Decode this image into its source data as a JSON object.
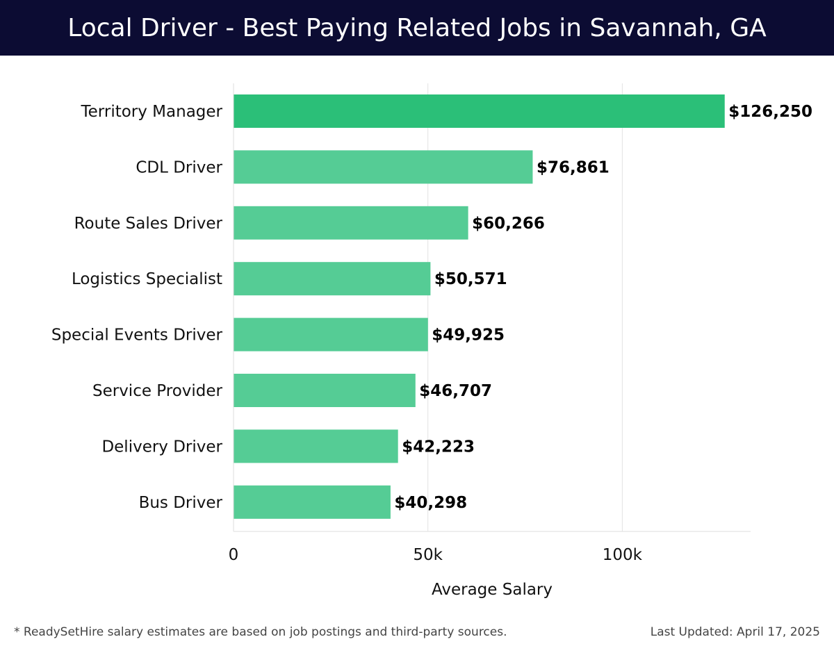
{
  "title": "Local Driver - Best Paying Related Jobs in Savannah, GA",
  "chart_data": {
    "type": "bar",
    "orientation": "horizontal",
    "categories": [
      "Territory Manager",
      "CDL Driver",
      "Route Sales Driver",
      "Logistics Specialist",
      "Special Events Driver",
      "Service Provider",
      "Delivery Driver",
      "Bus Driver"
    ],
    "values": [
      126250,
      76861,
      60266,
      50571,
      49925,
      46707,
      42223,
      40298
    ],
    "value_labels": [
      "$126,250",
      "$76,861",
      "$60,266",
      "$50,571",
      "$49,925",
      "$46,707",
      "$42,223",
      "$40,298"
    ],
    "xlabel": "Average Salary",
    "ylabel": "",
    "xlim": [
      0,
      133000
    ],
    "xticks": [
      0,
      50000,
      100000
    ],
    "xtick_labels": [
      "0",
      "50k",
      "100k"
    ],
    "grid": "vertical",
    "colors": {
      "highlight": "#2bbf78",
      "bar": "#55cc95"
    }
  },
  "footer": {
    "note": "* ReadySetHire salary estimates are based on job postings and third-party sources.",
    "updated": "Last Updated: April 17, 2025"
  }
}
